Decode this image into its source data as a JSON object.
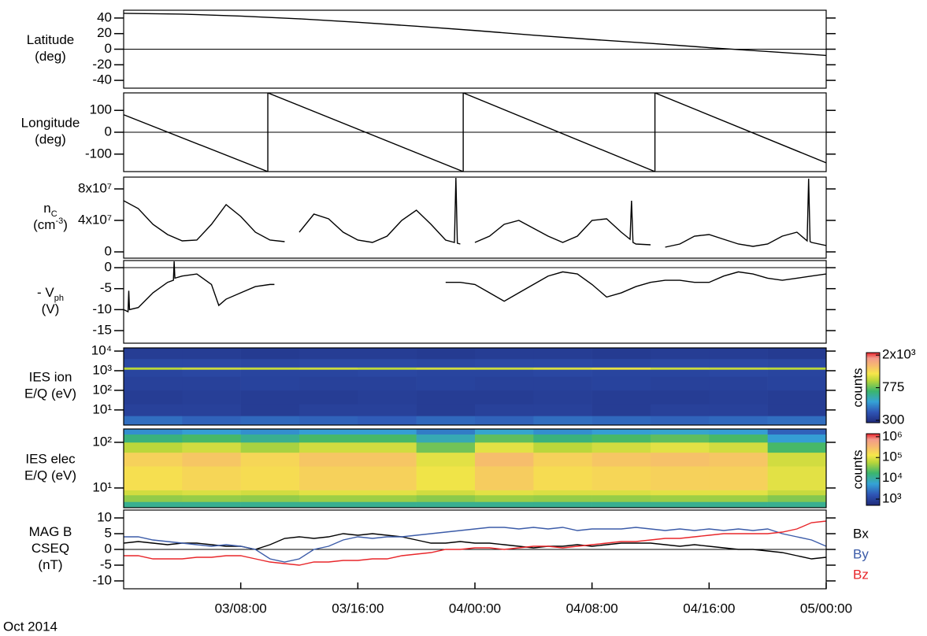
{
  "chart_data": [
    {
      "type": "line",
      "ylabel": [
        [
          "Latitude"
        ],
        [
          "(deg)"
        ]
      ],
      "xlim": [
        0,
        48
      ],
      "ylim": [
        -50,
        50
      ],
      "yticks": [
        -40,
        -20,
        0,
        20,
        40
      ],
      "zero_line": true,
      "color": "#000000",
      "x": [
        0,
        4,
        8,
        12,
        16,
        20,
        24,
        28,
        32,
        36,
        40,
        44,
        48
      ],
      "values": [
        46,
        45,
        42.5,
        39,
        34.5,
        29.5,
        24,
        18,
        12.5,
        7.5,
        2,
        -3,
        -8
      ]
    },
    {
      "type": "line",
      "ylabel": [
        [
          "Longitude"
        ],
        [
          "(deg)"
        ]
      ],
      "xlim": [
        0,
        48
      ],
      "ylim": [
        -180,
        180
      ],
      "yticks": [
        -100,
        0,
        100
      ],
      "zero_line": true,
      "color": "#000000",
      "x": [
        0,
        9.85,
        9.85,
        23.2,
        23.2,
        36.3,
        36.3,
        48
      ],
      "values": [
        80,
        -180,
        180,
        -180,
        180,
        -180,
        180,
        -140
      ]
    },
    {
      "type": "line",
      "ylabel": [
        [
          "n",
          {
            "sub": "C"
          }
        ],
        [
          "(cm",
          {
            "sup": "-3"
          },
          ")"
        ]
      ],
      "xlim": [
        0,
        48
      ],
      "ylim": [
        -8000000,
        95000000
      ],
      "yticks": [
        0,
        {
          "value": 40000000,
          "label": "4x10⁷"
        },
        {
          "value": 80000000,
          "label": "8x10⁷"
        }
      ],
      "zero_line": false,
      "color": "#000000",
      "x": [
        0,
        1,
        2,
        3,
        4,
        5,
        6,
        7,
        8,
        9,
        10,
        11,
        11.5,
        12,
        13,
        14,
        15,
        16,
        17,
        18,
        19,
        20,
        21,
        22,
        22.6,
        22.7,
        22.8,
        23,
        23.5,
        24,
        25,
        26,
        27,
        28,
        29,
        30,
        31,
        32,
        33,
        34,
        34.6,
        34.7,
        34.8,
        35,
        36,
        36.1,
        37,
        38,
        39,
        40,
        41,
        42,
        43,
        44,
        45,
        46,
        46.7,
        46.8,
        46.9,
        47,
        48
      ],
      "values": [
        65000000.0,
        55000000.0,
        35000000.0,
        22000000.0,
        14000000.0,
        15000000.0,
        35000000.0,
        60000000.0,
        45000000.0,
        25000000.0,
        15000000.0,
        13000000.0,
        null,
        25000000.0,
        48000000.0,
        42000000.0,
        25000000.0,
        15000000.0,
        12000000.0,
        20000000.0,
        40000000.0,
        53000000.0,
        35000000.0,
        15000000.0,
        12000000.0,
        94000000.0,
        11000000.0,
        10000000.0,
        null,
        12000000.0,
        20000000.0,
        35000000.0,
        40000000.0,
        30000000.0,
        20000000.0,
        12000000.0,
        20000000.0,
        40000000.0,
        42000000.0,
        25000000.0,
        16000000.0,
        65000000.0,
        12000000.0,
        10000000.0,
        9000000.0,
        null,
        6000000.0,
        10000000.0,
        20000000.0,
        22000000.0,
        16000000.0,
        10000000.0,
        7000000.0,
        10000000.0,
        20000000.0,
        25000000.0,
        14000000.0,
        93000000.0,
        13000000.0,
        12000000.0,
        8000000.0
      ]
    },
    {
      "type": "line",
      "ylabel": [
        [
          "- V",
          {
            "sub": "ph"
          }
        ],
        [
          "(V)"
        ]
      ],
      "xlim": [
        0,
        48
      ],
      "ylim": [
        -18,
        1.7
      ],
      "yticks": [
        -15,
        -10,
        -5,
        0
      ],
      "zero_line": true,
      "color": "#000000",
      "x": [
        0,
        0.3,
        0.35,
        0.4,
        1,
        2,
        3,
        3.4,
        3.45,
        3.5,
        4,
        5,
        6,
        6.5,
        7,
        8,
        9,
        10,
        10.3,
        16,
        22,
        23,
        24,
        25,
        26,
        27,
        28,
        29,
        30,
        31,
        32,
        33,
        34,
        35,
        36,
        37,
        38,
        39,
        40,
        41,
        42,
        43,
        44,
        45,
        46,
        47,
        48
      ],
      "values": [
        -10,
        -10.5,
        -5.5,
        -10,
        -9.5,
        -6,
        -3.5,
        -3,
        1.5,
        -2.5,
        -2,
        -1.5,
        -4,
        -9,
        -7.5,
        -6,
        -4.5,
        -4,
        -4,
        null,
        -3.5,
        -3.5,
        -4,
        -6,
        -8,
        -6,
        -4,
        -2,
        -1,
        -1.5,
        -4,
        -7,
        -6,
        -4.5,
        -3.5,
        -3,
        -3,
        -3.5,
        -3.5,
        -2,
        -1,
        -1.5,
        -2.5,
        -3,
        -2.5,
        -2,
        -1.5
      ]
    },
    {
      "type": "heatmap",
      "ylabel": [
        [
          "IES ion"
        ],
        [
          "E/Q (eV)"
        ]
      ],
      "xlim": [
        0,
        48
      ],
      "ylim": [
        1.7,
        14500
      ],
      "log_y": true,
      "yticks": [
        {
          "value": 10,
          "label": "10¹"
        },
        {
          "value": 100,
          "label": "10²"
        },
        {
          "value": 1000,
          "label": "10³"
        },
        {
          "value": 10000,
          "label": "10⁴"
        }
      ],
      "x_bins": [
        0,
        4,
        8,
        12,
        16,
        20,
        24,
        28,
        32,
        36,
        40,
        44,
        48
      ],
      "y_bins": [
        1.7,
        5,
        20,
        100,
        500,
        1150,
        1500,
        4000,
        14500
      ],
      "z": [
        [
          420,
          400,
          410,
          400,
          390,
          410,
          400,
          420,
          410,
          400,
          410,
          420
        ],
        [
          330,
          330,
          320,
          330,
          330,
          320,
          330,
          330,
          320,
          330,
          330,
          320
        ],
        [
          320,
          325,
          320,
          320,
          325,
          320,
          320,
          325,
          320,
          320,
          325,
          320
        ],
        [
          330,
          330,
          335,
          330,
          330,
          335,
          330,
          330,
          335,
          330,
          330,
          335
        ],
        [
          340,
          345,
          340,
          340,
          345,
          340,
          340,
          345,
          340,
          340,
          345,
          340
        ],
        [
          950,
          1000,
          980,
          1000,
          960,
          1020,
          1000,
          1050,
          1100,
          1000,
          980,
          950
        ],
        [
          350,
          350,
          345,
          350,
          350,
          345,
          350,
          350,
          345,
          350,
          350,
          345
        ],
        [
          320,
          320,
          315,
          320,
          320,
          315,
          320,
          320,
          315,
          320,
          320,
          315
        ]
      ],
      "colormap": "jet",
      "colorbar": {
        "label": "counts",
        "lim": [
          280,
          2150
        ],
        "log": true,
        "ticks": [
          300,
          775,
          {
            "value": 2000,
            "label": "2x10³"
          }
        ]
      }
    },
    {
      "type": "heatmap",
      "ylabel": [
        [
          "IES elec"
        ],
        [
          "E/Q (eV)"
        ]
      ],
      "xlim": [
        0,
        48
      ],
      "ylim": [
        3.7,
        196
      ],
      "log_y": true,
      "yticks": [
        {
          "value": 10,
          "label": "10¹"
        },
        {
          "value": 100,
          "label": "10²"
        }
      ],
      "x_bins": [
        0,
        4,
        8,
        12,
        16,
        20,
        24,
        28,
        32,
        36,
        40,
        44,
        48
      ],
      "y_bins": [
        3.7,
        5,
        7,
        9,
        30,
        60,
        100,
        150,
        196
      ],
      "z": [
        [
          12000,
          12000,
          12000,
          12000,
          12000,
          12000,
          12000,
          12000,
          12000,
          12000,
          12000,
          12000
        ],
        [
          40000,
          42000,
          40000,
          45000,
          45000,
          38000,
          45000,
          42000,
          42000,
          45000,
          45000,
          35000
        ],
        [
          80000,
          90000,
          80000,
          100000,
          100000,
          80000,
          100000,
          90000,
          90000,
          100000,
          100000,
          70000
        ],
        [
          150000,
          180000,
          160000,
          200000,
          200000,
          120000,
          220000,
          160000,
          180000,
          200000,
          200000,
          100000
        ],
        [
          200000,
          250000,
          180000,
          250000,
          250000,
          100000,
          300000,
          200000,
          250000,
          280000,
          250000,
          80000
        ],
        [
          60000,
          80000,
          50000,
          80000,
          80000,
          30000,
          100000,
          60000,
          80000,
          100000,
          80000,
          20000
        ],
        [
          15000,
          20000,
          12000,
          20000,
          20000,
          8000,
          25000,
          15000,
          20000,
          25000,
          20000,
          5000
        ],
        [
          4000,
          5000,
          4000,
          5000,
          5000,
          3000,
          6000,
          4000,
          5000,
          6000,
          5000,
          2000
        ]
      ],
      "colormap": "jet",
      "colorbar": {
        "label": "counts",
        "lim": [
          500,
          1400000
        ],
        "log": true,
        "ticks": [
          {
            "value": 1000,
            "label": "10³"
          },
          {
            "value": 10000,
            "label": "10⁴"
          },
          {
            "value": 100000,
            "label": "10⁵"
          },
          {
            "value": 1000000,
            "label": "10⁶"
          }
        ]
      }
    },
    {
      "type": "line",
      "ylabel": [
        [
          "MAG B"
        ],
        [
          "CSEQ"
        ],
        [
          "(nT)"
        ]
      ],
      "xlim": [
        0,
        48
      ],
      "ylim": [
        -12.5,
        12.5
      ],
      "yticks": [
        -10,
        -5,
        0,
        5,
        10
      ],
      "zero_line": true,
      "xlabel": "Oct 2014",
      "xticks": [
        {
          "value": 8,
          "label": "03/08:00"
        },
        {
          "value": 16,
          "label": "03/16:00"
        },
        {
          "value": 24,
          "label": "04/00:00"
        },
        {
          "value": 32,
          "label": "04/08:00"
        },
        {
          "value": 40,
          "label": "04/16:00"
        },
        {
          "value": 48,
          "label": "05/00:00"
        }
      ],
      "x": [
        0,
        1,
        2,
        3,
        4,
        5,
        6,
        7,
        8,
        9,
        10,
        11,
        12,
        13,
        14,
        15,
        16,
        17,
        18,
        19,
        20,
        21,
        22,
        23,
        24,
        25,
        26,
        27,
        28,
        29,
        30,
        31,
        32,
        33,
        34,
        35,
        36,
        37,
        38,
        39,
        40,
        41,
        42,
        43,
        44,
        45,
        46,
        47,
        48
      ],
      "series": [
        {
          "name": "Bx",
          "color": "#000000",
          "values": [
            2,
            2.5,
            2,
            1.5,
            2,
            2,
            1.5,
            1,
            1,
            0,
            1.5,
            3.5,
            4,
            3.5,
            4,
            5,
            4.5,
            5,
            4.5,
            4,
            3,
            2,
            2,
            2.5,
            2,
            2,
            1.5,
            1,
            0.5,
            1,
            1,
            1.5,
            1,
            1.5,
            2,
            2,
            2,
            1.5,
            1,
            1.5,
            1,
            0.5,
            0,
            0,
            -0.5,
            -1,
            -2,
            -3,
            -2.5
          ]
        },
        {
          "name": "By",
          "color": "#3b5ba8",
          "values": [
            4,
            4,
            3,
            2.5,
            2,
            1.5,
            1,
            1.5,
            1,
            0,
            -3,
            -4,
            -3,
            0,
            1,
            3,
            4,
            3.5,
            4,
            4,
            4.5,
            5,
            5.5,
            6,
            6.5,
            7,
            7,
            6.5,
            7,
            6.5,
            7,
            6,
            6.5,
            6.5,
            6.5,
            7,
            6.5,
            6,
            6.5,
            6,
            6.5,
            6,
            6.5,
            6,
            6.5,
            5,
            4,
            3,
            1
          ]
        },
        {
          "name": "Bz",
          "color": "#e8262a",
          "values": [
            -2,
            -2,
            -3,
            -3,
            -3,
            -2.5,
            -2.5,
            -2,
            -2,
            -3,
            -4,
            -4.5,
            -5,
            -4,
            -4,
            -3.5,
            -3.5,
            -3,
            -3,
            -2,
            -1.5,
            -1,
            0,
            0,
            0.5,
            0.5,
            0,
            0.5,
            1,
            1,
            0.5,
            1,
            1.5,
            2,
            2.5,
            2.5,
            3,
            3.5,
            3.5,
            4,
            4.5,
            5,
            5,
            5,
            5,
            5.5,
            6.5,
            8.5,
            9
          ]
        }
      ]
    }
  ]
}
